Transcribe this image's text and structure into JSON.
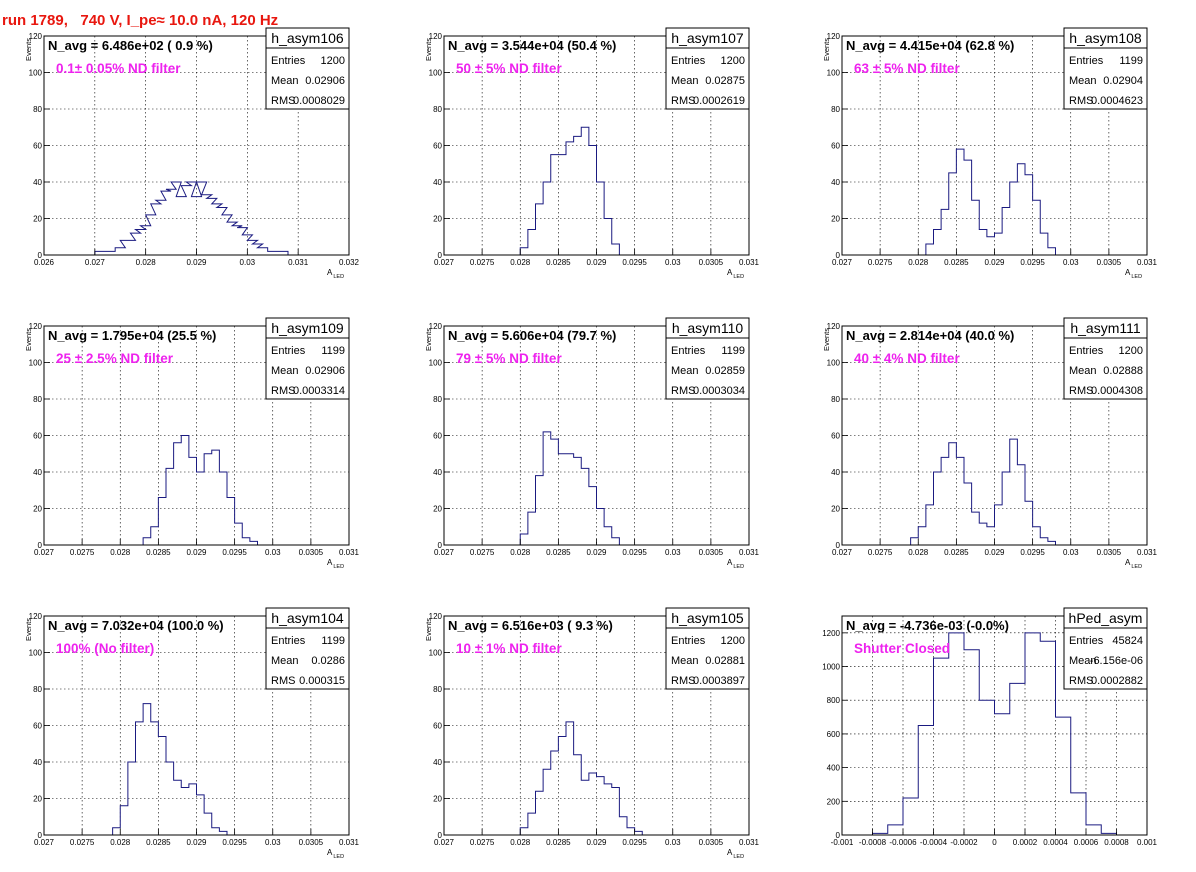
{
  "header": {
    "run_title": "run 1789,   740 V, I_pe≈ 10.0 nA, 120 Hz"
  },
  "colors": {
    "histogram": "#1a1a80",
    "title": "#e8170f",
    "filter_label": "#ee22ee",
    "frame": "#000000",
    "grid": "#000000"
  },
  "chart_data": [
    {
      "type": "histogram",
      "name": "h_asym106",
      "navg": "N_avg = 6.486e+02 ( 0.9 %)",
      "filter": "0.1± 0.05% ND filter",
      "entries": "1200",
      "mean": "0.02906",
      "rms": "0.0008029",
      "xlim": [
        0.026,
        0.032
      ],
      "ylim": [
        0,
        120
      ],
      "xticks": [
        0.026,
        0.027,
        0.028,
        0.029,
        0.03,
        0.031,
        0.032
      ],
      "xticklabels": [
        "0.026",
        "0.027",
        "0.028",
        "0.029",
        "0.03",
        "0.031",
        "0.032"
      ],
      "yticks": [
        0,
        20,
        40,
        60,
        80,
        100,
        120
      ],
      "yticklabels": [
        "0",
        "20",
        "40",
        "60",
        "80",
        "100",
        "120"
      ],
      "ylabel": "Events",
      "xlabel": "A",
      "xlabel_sub": "LED",
      "x": [
        0.0271,
        0.0273,
        0.0275,
        0.0276,
        0.0277,
        0.0278,
        0.0279,
        0.028,
        0.0281,
        0.0282,
        0.0283,
        0.0284,
        0.0285,
        0.0286,
        0.0287,
        0.0288,
        0.0289,
        0.029,
        0.0291,
        0.0292,
        0.0293,
        0.0294,
        0.0295,
        0.0296,
        0.0297,
        0.0298,
        0.0299,
        0.03,
        0.0301,
        0.0302,
        0.0303,
        0.0305,
        0.0307
      ],
      "y": [
        2,
        2,
        4,
        8,
        8,
        12,
        14,
        16,
        22,
        28,
        30,
        35,
        36,
        40,
        32,
        38,
        40,
        32,
        40,
        33,
        31,
        28,
        26,
        22,
        18,
        16,
        15,
        11,
        8,
        6,
        4,
        2,
        2
      ]
    },
    {
      "type": "histogram",
      "name": "h_asym107",
      "navg": "N_avg = 3.544e+04 (50.4 %)",
      "filter": "50 ± 5% ND filter",
      "entries": "1200",
      "mean": "0.02875",
      "rms": "0.0002619",
      "xlim": [
        0.027,
        0.031
      ],
      "ylim": [
        0,
        120
      ],
      "xticks": [
        0.027,
        0.0275,
        0.028,
        0.0285,
        0.029,
        0.0295,
        0.03,
        0.0305,
        0.031
      ],
      "xticklabels": [
        "0.027",
        "0.0275",
        "0.028",
        "0.0285",
        "0.029",
        "0.0295",
        "0.03",
        "0.0305",
        "0.031"
      ],
      "yticks": [
        0,
        20,
        40,
        60,
        80,
        100,
        120
      ],
      "yticklabels": [
        "0",
        "20",
        "40",
        "60",
        "80",
        "100",
        "120"
      ],
      "ylabel": "Events",
      "xlabel": "A",
      "xlabel_sub": "LED",
      "x": [
        0.02805,
        0.02815,
        0.02825,
        0.02835,
        0.02845,
        0.02855,
        0.02865,
        0.02875,
        0.02885,
        0.02895,
        0.02905,
        0.02915,
        0.02925
      ],
      "y": [
        4,
        14,
        28,
        40,
        55,
        55,
        62,
        65,
        70,
        60,
        40,
        20,
        6
      ]
    },
    {
      "type": "histogram",
      "name": "h_asym108",
      "navg": "N_avg = 4.415e+04 (62.8 %)",
      "filter": "63 ± 5% ND filter",
      "entries": "1199",
      "mean": "0.02904",
      "rms": "0.0004623",
      "xlim": [
        0.027,
        0.031
      ],
      "ylim": [
        0,
        120
      ],
      "xticks": [
        0.027,
        0.0275,
        0.028,
        0.0285,
        0.029,
        0.0295,
        0.03,
        0.0305,
        0.031
      ],
      "xticklabels": [
        "0.027",
        "0.0275",
        "0.028",
        "0.0285",
        "0.029",
        "0.0295",
        "0.03",
        "0.0305",
        "0.031"
      ],
      "yticks": [
        0,
        20,
        40,
        60,
        80,
        100,
        120
      ],
      "yticklabels": [
        "0",
        "20",
        "40",
        "60",
        "80",
        "100",
        "120"
      ],
      "ylabel": "Events",
      "xlabel": "A",
      "xlabel_sub": "LED",
      "x": [
        0.02815,
        0.02825,
        0.02835,
        0.02845,
        0.02855,
        0.02865,
        0.02875,
        0.02885,
        0.02895,
        0.02905,
        0.02915,
        0.02925,
        0.02935,
        0.02945,
        0.02955,
        0.02965,
        0.02975
      ],
      "y": [
        6,
        14,
        25,
        45,
        58,
        52,
        30,
        14,
        10,
        12,
        26,
        40,
        50,
        44,
        30,
        12,
        4
      ]
    },
    {
      "type": "histogram",
      "name": "h_asym109",
      "navg": "N_avg = 1.795e+04 (25.5 %)",
      "filter": "25 ± 2.5% ND filter",
      "entries": "1199",
      "mean": "0.02906",
      "rms": "0.0003314",
      "xlim": [
        0.027,
        0.031
      ],
      "ylim": [
        0,
        120
      ],
      "xticks": [
        0.027,
        0.0275,
        0.028,
        0.0285,
        0.029,
        0.0295,
        0.03,
        0.0305,
        0.031
      ],
      "xticklabels": [
        "0.027",
        "0.0275",
        "0.028",
        "0.0285",
        "0.029",
        "0.0295",
        "0.03",
        "0.0305",
        "0.031"
      ],
      "yticks": [
        0,
        20,
        40,
        60,
        80,
        100,
        120
      ],
      "yticklabels": [
        "0",
        "20",
        "40",
        "60",
        "80",
        "100",
        "120"
      ],
      "ylabel": "Events",
      "xlabel": "A",
      "xlabel_sub": "LED",
      "x": [
        0.02835,
        0.02845,
        0.02855,
        0.02865,
        0.02875,
        0.02885,
        0.02895,
        0.02905,
        0.02915,
        0.02925,
        0.02935,
        0.02945,
        0.02955,
        0.02965,
        0.02975
      ],
      "y": [
        4,
        10,
        26,
        42,
        56,
        60,
        48,
        40,
        50,
        52,
        40,
        26,
        12,
        4,
        2
      ]
    },
    {
      "type": "histogram",
      "name": "h_asym110",
      "navg": "N_avg = 5.606e+04 (79.7 %)",
      "filter": "79 ± 5% ND filter",
      "entries": "1199",
      "mean": "0.02859",
      "rms": "0.0003034",
      "xlim": [
        0.027,
        0.031
      ],
      "ylim": [
        0,
        120
      ],
      "xticks": [
        0.027,
        0.0275,
        0.028,
        0.0285,
        0.029,
        0.0295,
        0.03,
        0.0305,
        0.031
      ],
      "xticklabels": [
        "0.027",
        "0.0275",
        "0.028",
        "0.0285",
        "0.029",
        "0.0295",
        "0.03",
        "0.0305",
        "0.031"
      ],
      "yticks": [
        0,
        20,
        40,
        60,
        80,
        100,
        120
      ],
      "yticklabels": [
        "0",
        "20",
        "40",
        "60",
        "80",
        "100",
        "120"
      ],
      "ylabel": "Events",
      "xlabel": "A",
      "xlabel_sub": "LED",
      "x": [
        0.02805,
        0.02815,
        0.02825,
        0.02835,
        0.02845,
        0.02855,
        0.02865,
        0.02875,
        0.02885,
        0.02895,
        0.02905,
        0.02915,
        0.02925
      ],
      "y": [
        6,
        18,
        38,
        62,
        58,
        50,
        50,
        48,
        42,
        32,
        20,
        10,
        4
      ]
    },
    {
      "type": "histogram",
      "name": "h_asym111",
      "navg": "N_avg = 2.814e+04 (40.0 %)",
      "filter": "40 ± 4% ND filter",
      "entries": "1200",
      "mean": "0.02888",
      "rms": "0.0004308",
      "xlim": [
        0.027,
        0.031
      ],
      "ylim": [
        0,
        120
      ],
      "xticks": [
        0.027,
        0.0275,
        0.028,
        0.0285,
        0.029,
        0.0295,
        0.03,
        0.0305,
        0.031
      ],
      "xticklabels": [
        "0.027",
        "0.0275",
        "0.028",
        "0.0285",
        "0.029",
        "0.0295",
        "0.03",
        "0.0305",
        "0.031"
      ],
      "yticks": [
        0,
        20,
        40,
        60,
        80,
        100,
        120
      ],
      "yticklabels": [
        "0",
        "20",
        "40",
        "60",
        "80",
        "100",
        "120"
      ],
      "ylabel": "Events",
      "xlabel": "A",
      "xlabel_sub": "LED",
      "x": [
        0.02795,
        0.02805,
        0.02815,
        0.02825,
        0.02835,
        0.02845,
        0.02855,
        0.02865,
        0.02875,
        0.02885,
        0.02895,
        0.02905,
        0.02915,
        0.02925,
        0.02935,
        0.02945,
        0.02955,
        0.02965,
        0.02975
      ],
      "y": [
        4,
        10,
        22,
        40,
        48,
        56,
        48,
        34,
        18,
        12,
        10,
        22,
        40,
        58,
        44,
        24,
        10,
        4,
        2
      ]
    },
    {
      "type": "histogram",
      "name": "h_asym104",
      "navg": "N_avg = 7.032e+04 (100.0 %)",
      "filter": "100% (No filter)",
      "entries": "1199",
      "mean": "0.0286",
      "rms": "0.000315",
      "xlim": [
        0.027,
        0.031
      ],
      "ylim": [
        0,
        120
      ],
      "xticks": [
        0.027,
        0.0275,
        0.028,
        0.0285,
        0.029,
        0.0295,
        0.03,
        0.0305,
        0.031
      ],
      "xticklabels": [
        "0.027",
        "0.0275",
        "0.028",
        "0.0285",
        "0.029",
        "0.0295",
        "0.03",
        "0.0305",
        "0.031"
      ],
      "yticks": [
        0,
        20,
        40,
        60,
        80,
        100,
        120
      ],
      "yticklabels": [
        "0",
        "20",
        "40",
        "60",
        "80",
        "100",
        "120"
      ],
      "ylabel": "Events",
      "xlabel": "A",
      "xlabel_sub": "LED",
      "x": [
        0.02795,
        0.02805,
        0.02815,
        0.02825,
        0.02835,
        0.02845,
        0.02855,
        0.02865,
        0.02875,
        0.02885,
        0.02895,
        0.02905,
        0.02915,
        0.02925,
        0.02935
      ],
      "y": [
        4,
        16,
        40,
        62,
        72,
        62,
        54,
        40,
        30,
        26,
        28,
        22,
        12,
        4,
        2
      ]
    },
    {
      "type": "histogram",
      "name": "h_asym105",
      "navg": "N_avg = 6.516e+03 ( 9.3 %)",
      "filter": "10 ± 1% ND filter",
      "entries": "1200",
      "mean": "0.02881",
      "rms": "0.0003897",
      "xlim": [
        0.027,
        0.031
      ],
      "ylim": [
        0,
        120
      ],
      "xticks": [
        0.027,
        0.0275,
        0.028,
        0.0285,
        0.029,
        0.0295,
        0.03,
        0.0305,
        0.031
      ],
      "xticklabels": [
        "0.027",
        "0.0275",
        "0.028",
        "0.0285",
        "0.029",
        "0.0295",
        "0.03",
        "0.0305",
        "0.031"
      ],
      "yticks": [
        0,
        20,
        40,
        60,
        80,
        100,
        120
      ],
      "yticklabels": [
        "0",
        "20",
        "40",
        "60",
        "80",
        "100",
        "120"
      ],
      "ylabel": "Events",
      "xlabel": "A",
      "xlabel_sub": "LED",
      "x": [
        0.02805,
        0.02815,
        0.02825,
        0.02835,
        0.02845,
        0.02855,
        0.02865,
        0.02875,
        0.02885,
        0.02895,
        0.02905,
        0.02915,
        0.02925,
        0.02935,
        0.02945,
        0.02955
      ],
      "y": [
        4,
        12,
        24,
        36,
        46,
        54,
        62,
        44,
        30,
        34,
        32,
        28,
        26,
        10,
        4,
        2
      ]
    },
    {
      "type": "histogram",
      "name": "hPed_asym",
      "navg": "N_avg = -4.736e-03 (-0.0%)",
      "filter": "Shutter Closed",
      "entries": "45824",
      "mean": "-6.156e-06",
      "rms": "0.0002882",
      "xlim": [
        -0.001,
        0.001
      ],
      "ylim": [
        0,
        1300
      ],
      "xticks": [
        -0.001,
        -0.0008,
        -0.0006,
        -0.0004,
        -0.0002,
        0,
        0.0002,
        0.0004,
        0.0006,
        0.0008,
        0.001
      ],
      "xticklabels": [
        "-0.001",
        "-0.0008",
        "-0.0006",
        "-0.0004",
        "-0.0002",
        "0",
        "0.0002",
        "0.0004",
        "0.0006",
        "0.0008",
        "0.001"
      ],
      "yticks": [
        0,
        200,
        400,
        600,
        800,
        1000,
        1200
      ],
      "yticklabels": [
        "0",
        "200",
        "400",
        "600",
        "800",
        "1000",
        "1200"
      ],
      "ylabel": "",
      "xlabel": "",
      "xlabel_sub": "",
      "x": [
        -0.00075,
        -0.00065,
        -0.00055,
        -0.00045,
        -0.00035,
        -0.00025,
        -0.00015,
        -5e-05,
        5e-05,
        0.00015,
        0.00025,
        0.00035,
        0.00045,
        0.00055,
        0.00065,
        0.00075
      ],
      "y": [
        10,
        60,
        220,
        650,
        1050,
        1200,
        1100,
        800,
        720,
        900,
        1200,
        1150,
        700,
        250,
        60,
        10
      ]
    }
  ]
}
